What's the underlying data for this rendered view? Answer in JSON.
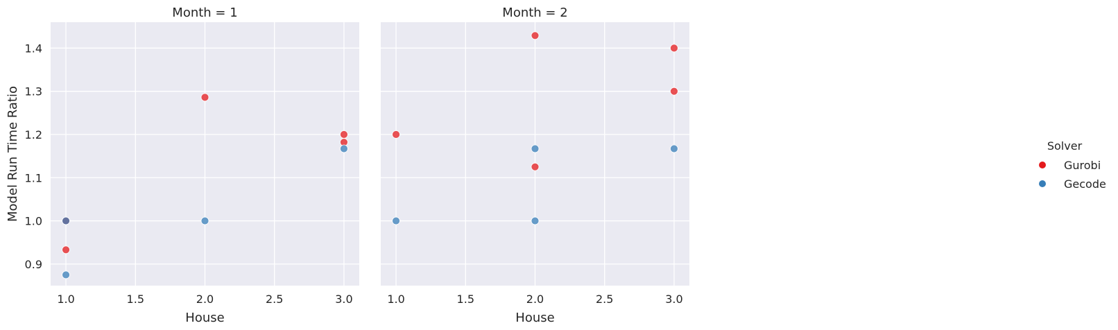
{
  "chart_data": {
    "type": "scatter",
    "xlabel": "House",
    "ylabel": "Model Run Time Ratio",
    "xlim": [
      0.89,
      3.11
    ],
    "ylim": [
      0.85,
      1.46
    ],
    "x_ticks": [
      "1.0",
      "1.5",
      "2.0",
      "2.5",
      "3.0"
    ],
    "y_ticks": [
      "0.9",
      "1.0",
      "1.1",
      "1.2",
      "1.3",
      "1.4"
    ],
    "grid": true,
    "legend": {
      "title": "Solver",
      "placement": "right",
      "entries": [
        {
          "name": "Gurobi",
          "color": "#e41a1c"
        },
        {
          "name": "Gecode",
          "color": "#377eb8"
        }
      ]
    },
    "panels": [
      {
        "title": "Month = 1",
        "series": [
          {
            "name": "Gurobi",
            "points": [
              [
                1.0,
                1.0
              ],
              [
                1.0,
                0.933
              ],
              [
                2.0,
                1.286
              ],
              [
                3.0,
                1.2
              ],
              [
                3.0,
                1.182
              ]
            ]
          },
          {
            "name": "Gecode",
            "points": [
              [
                1.0,
                1.0
              ],
              [
                1.0,
                0.875
              ],
              [
                2.0,
                1.0
              ],
              [
                3.0,
                1.167
              ]
            ]
          }
        ]
      },
      {
        "title": "Month = 2",
        "series": [
          {
            "name": "Gurobi",
            "points": [
              [
                1.0,
                1.2
              ],
              [
                2.0,
                1.429
              ],
              [
                2.0,
                1.125
              ],
              [
                3.0,
                1.4
              ],
              [
                3.0,
                1.3
              ]
            ]
          },
          {
            "name": "Gecode",
            "points": [
              [
                1.0,
                1.0
              ],
              [
                2.0,
                1.167
              ],
              [
                2.0,
                1.0
              ],
              [
                3.0,
                1.167
              ]
            ]
          }
        ]
      }
    ]
  }
}
